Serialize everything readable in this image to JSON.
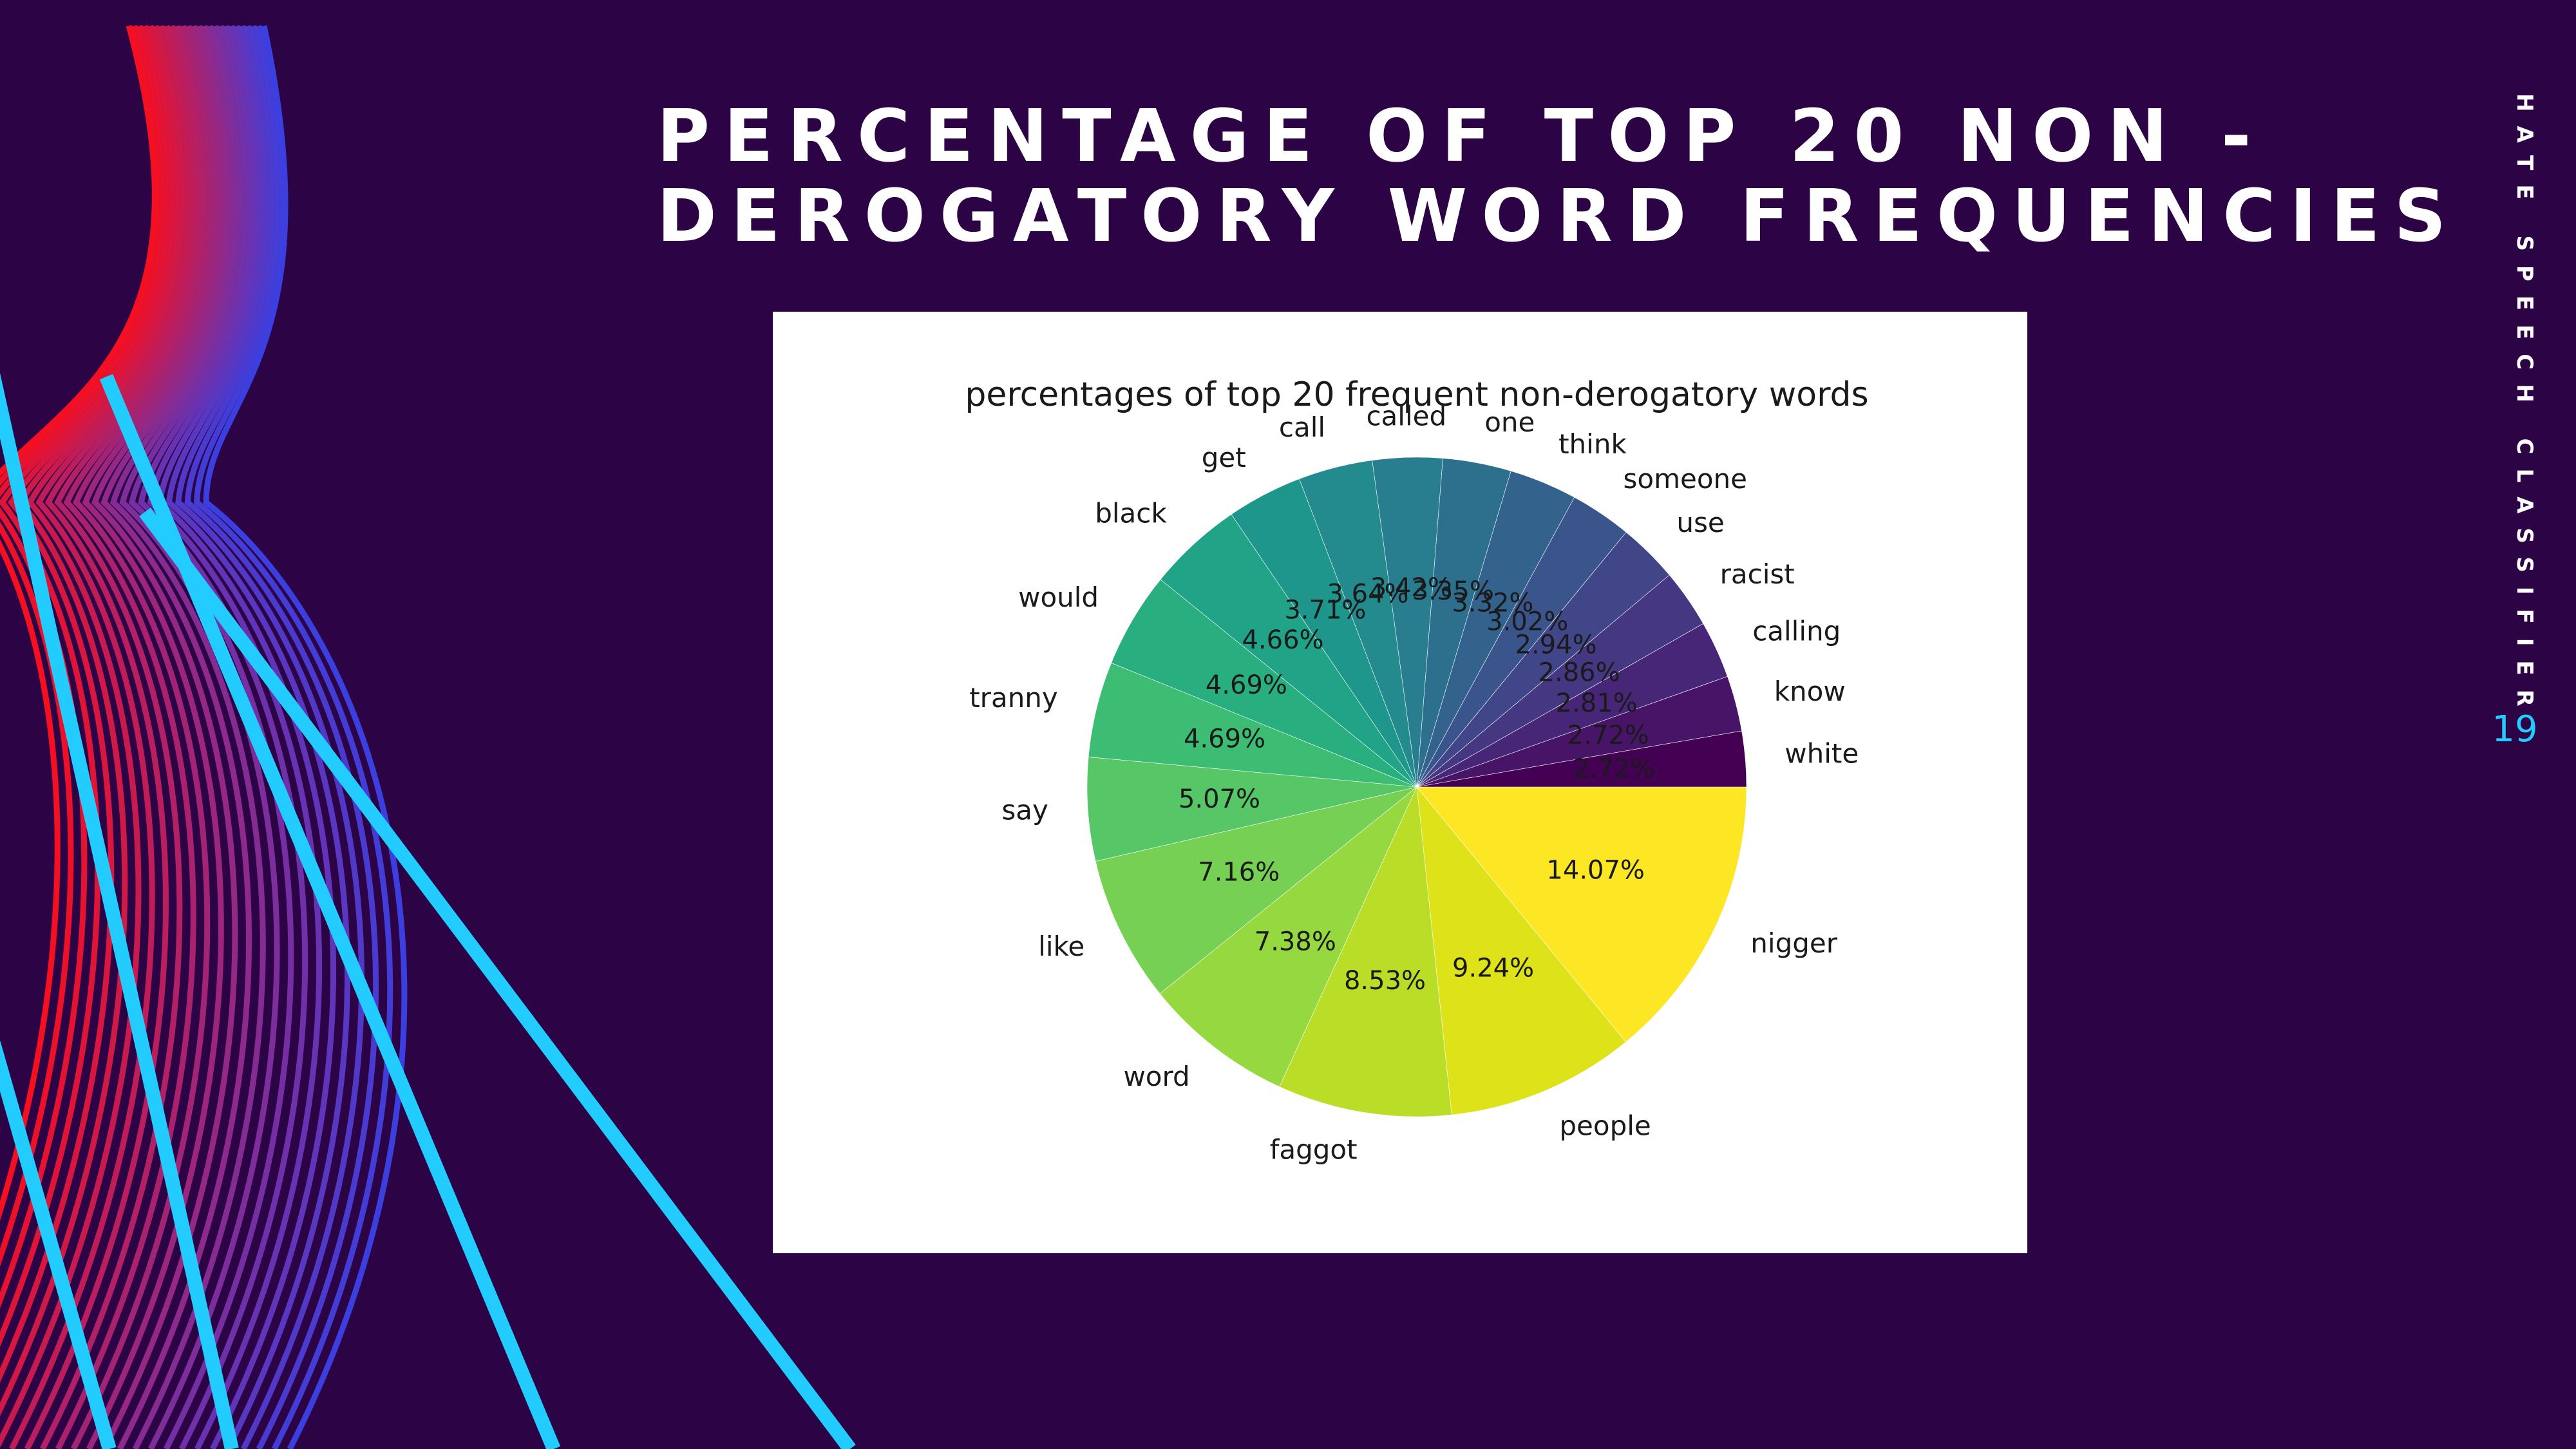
{
  "slide": {
    "title_lines": [
      "PERCENTAGE OF TOP 20 NON -",
      "DEROGATORY WORD FREQUENCIES"
    ],
    "footer": "HATE SPEECH CLASSIFIER",
    "page_number": "19"
  },
  "colors": {
    "background": "#2c0445",
    "accent": "#22ccff",
    "stripe": "#ff1020"
  },
  "chart_data": {
    "type": "pie",
    "title": "percentages of top 20 frequent non-derogatory words",
    "colormap": "viridis",
    "labels": [
      "nigger",
      "people",
      "faggot",
      "word",
      "like",
      "say",
      "tranny",
      "would",
      "black",
      "get",
      "call",
      "called",
      "one",
      "think",
      "someone",
      "use",
      "racist",
      "calling",
      "know",
      "white"
    ],
    "values": [
      14.07,
      9.24,
      8.53,
      7.38,
      7.16,
      5.07,
      4.69,
      4.69,
      4.66,
      3.71,
      3.64,
      3.42,
      3.35,
      3.32,
      3.02,
      2.94,
      2.86,
      2.81,
      2.72,
      2.72
    ],
    "percent_labels": [
      "14.07%",
      "9.24%",
      "8.53%",
      "7.38%",
      "7.16%",
      "5.07%",
      "4.69%",
      "4.69%",
      "4.66%",
      "3.71%",
      "3.64%",
      "3.42%",
      "3.35%",
      "3.32%",
      "3.02%",
      "2.94%",
      "2.86%",
      "2.81%",
      "2.72%",
      "2.72%"
    ],
    "colors": [
      "#fde725",
      "#dde318",
      "#bade28",
      "#95d840",
      "#75d054",
      "#56c667",
      "#3dbc74",
      "#29af7f",
      "#20a386",
      "#1f968b",
      "#238a8d",
      "#287d8e",
      "#2d708e",
      "#33638d",
      "#39558c",
      "#404688",
      "#453781",
      "#482677",
      "#481467",
      "#440154"
    ],
    "start_angle_deg": 0,
    "direction": "clockwise-on-screen"
  }
}
